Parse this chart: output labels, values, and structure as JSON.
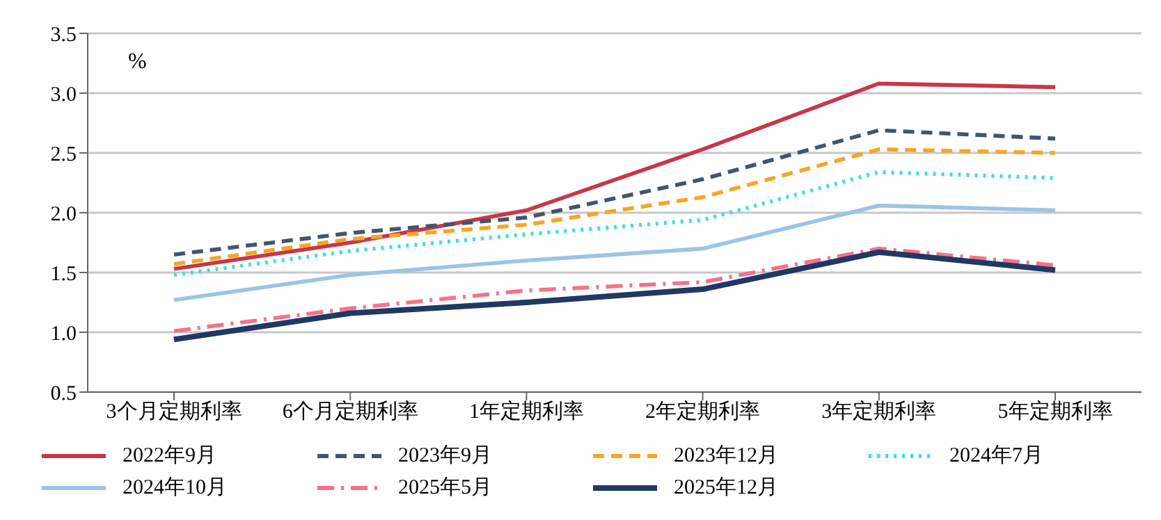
{
  "chart_data": {
    "type": "line",
    "ylabel": "%",
    "categories": [
      "3个月定期利率",
      "6个月定期利率",
      "1年定期利率",
      "2年定期利率",
      "3年定期利率",
      "5年定期利率"
    ],
    "series": [
      {
        "name": "2022年9月",
        "color": "#c8374a",
        "line_style": "solid",
        "values": [
          1.53,
          1.75,
          2.02,
          2.53,
          3.08,
          3.05
        ]
      },
      {
        "name": "2023年9月",
        "color": "#44546a",
        "line_style": "dashed",
        "values": [
          1.65,
          1.83,
          1.96,
          2.28,
          2.69,
          2.62
        ]
      },
      {
        "name": "2023年12月",
        "color": "#f5a623",
        "line_style": "dashed",
        "values": [
          1.57,
          1.78,
          1.9,
          2.13,
          2.53,
          2.5
        ]
      },
      {
        "name": "2024年7月",
        "color": "#40e0d0",
        "line_style": "dotted",
        "values": [
          1.48,
          1.68,
          1.82,
          1.94,
          2.34,
          2.29
        ]
      },
      {
        "name": "2024年10月",
        "color": "#9dc3e6",
        "line_style": "solid",
        "values": [
          1.27,
          1.48,
          1.6,
          1.7,
          2.06,
          2.02
        ]
      },
      {
        "name": "2025年5月",
        "color": "#f4728a",
        "line_style": "dashdot",
        "values": [
          1.01,
          1.2,
          1.35,
          1.42,
          1.7,
          1.56
        ]
      },
      {
        "name": "2025年12月",
        "color": "#203864",
        "line_style": "solid",
        "values": [
          0.94,
          1.16,
          1.25,
          1.36,
          1.67,
          1.52
        ]
      }
    ],
    "ylim": [
      0.5,
      3.5
    ],
    "yticks": [
      {
        "value": 0.5,
        "label": "0.5"
      },
      {
        "value": 1,
        "label": "1.0"
      },
      {
        "value": 1.5,
        "label": "1.5"
      },
      {
        "value": 2,
        "label": "2.0"
      },
      {
        "value": 2.5,
        "label": "2.5"
      },
      {
        "value": 3,
        "label": "3.0"
      },
      {
        "value": 3.5,
        "label": "3.5"
      }
    ],
    "grid": "y",
    "legend": "bottom",
    "marker": "none"
  }
}
